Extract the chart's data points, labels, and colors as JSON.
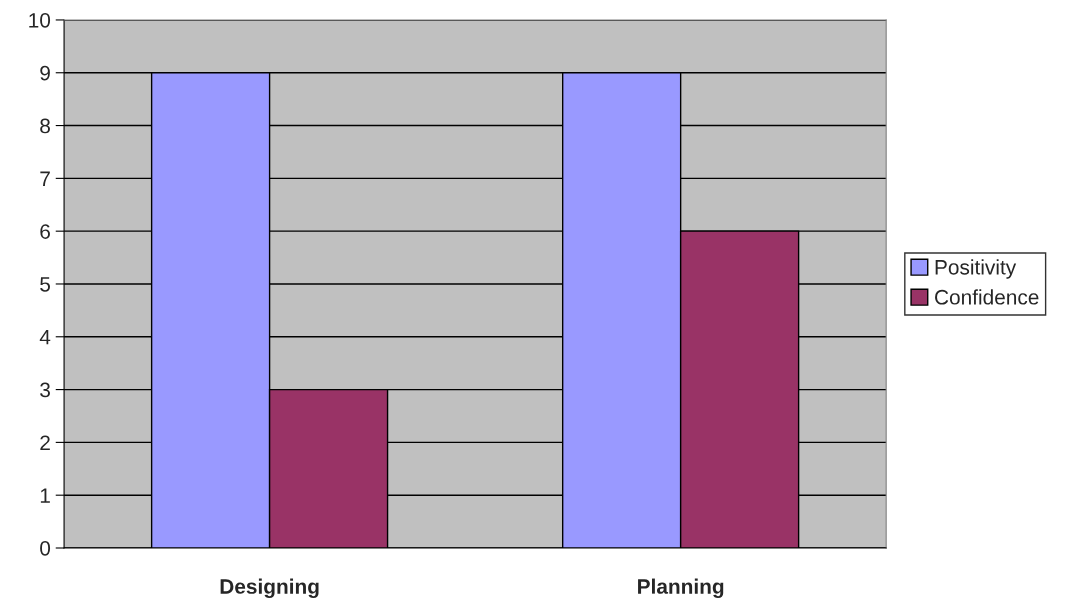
{
  "chart_data": {
    "type": "bar",
    "categories": [
      "Designing",
      "Planning"
    ],
    "series": [
      {
        "name": "Positivity",
        "color": "#9999ff",
        "values": [
          9,
          9
        ]
      },
      {
        "name": "Confidence",
        "color": "#993366",
        "values": [
          3,
          6
        ]
      }
    ],
    "ylim": [
      0,
      10
    ],
    "yticks": [
      0,
      1,
      2,
      3,
      4,
      5,
      6,
      7,
      8,
      9,
      10
    ],
    "grid": "y",
    "legend": "right"
  }
}
